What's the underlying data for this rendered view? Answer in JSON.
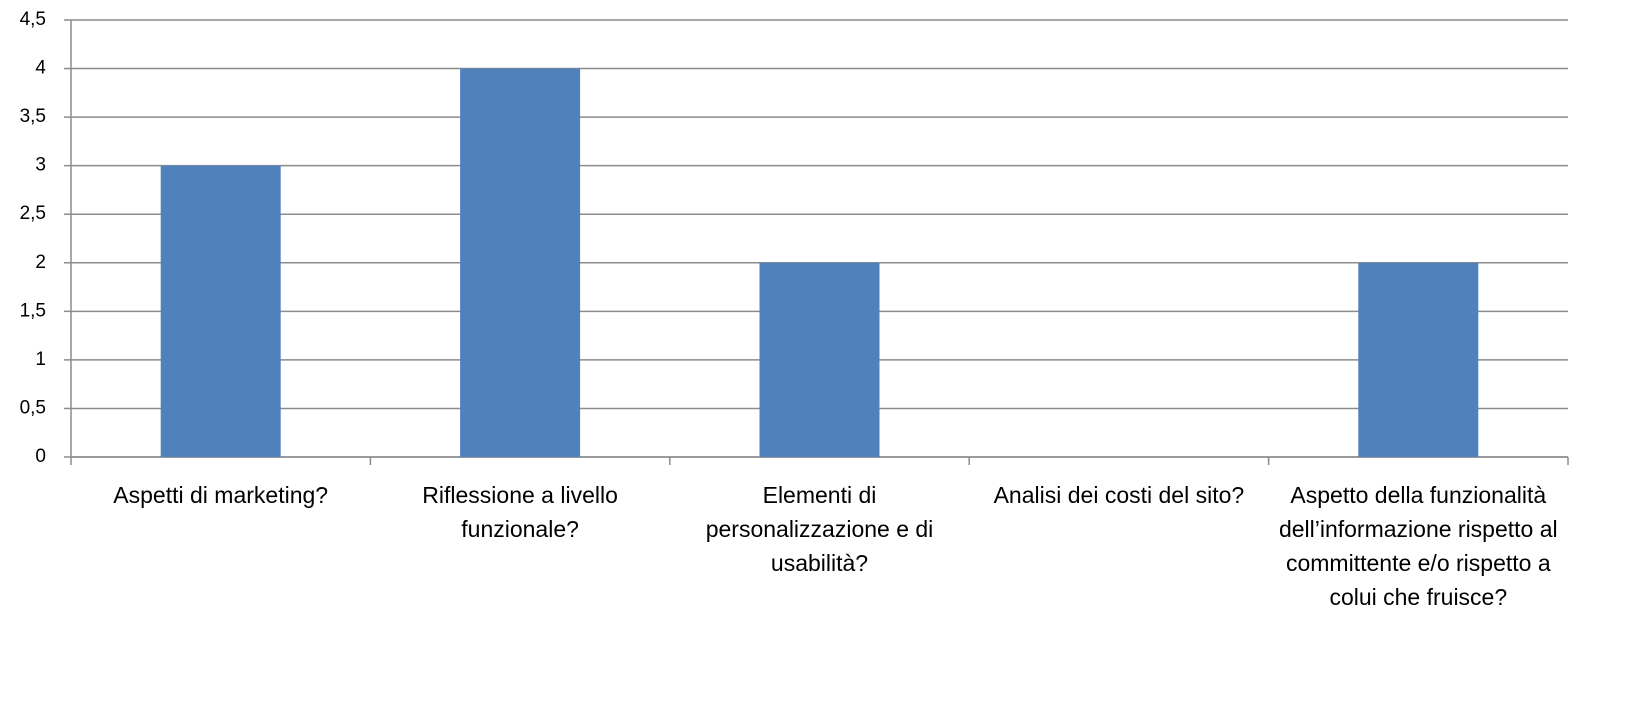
{
  "chart_data": {
    "type": "bar",
    "categories": [
      "Aspetti di marketing?",
      "Riflessione a livello funzionale?",
      "Elementi di personalizzazione e di usabilità?",
      "Analisi dei costi del sito?",
      "Aspetto della funzionalità dell’informazione rispetto al committente e/o rispetto a colui che fruisce?"
    ],
    "values": [
      3,
      4,
      2,
      0,
      2
    ],
    "color": "#4f81bd",
    "ylim": [
      0,
      4.5
    ],
    "yticks": [
      0,
      {
        "value": 0.5,
        "label": "0,5"
      },
      1,
      {
        "value": 1.5,
        "label": "1,5"
      },
      2,
      {
        "value": 2.5,
        "label": "2,5"
      },
      3,
      {
        "value": 3.5,
        "label": "3,5"
      },
      4,
      {
        "value": 4.5,
        "label": "4,5"
      }
    ],
    "grid": true
  }
}
